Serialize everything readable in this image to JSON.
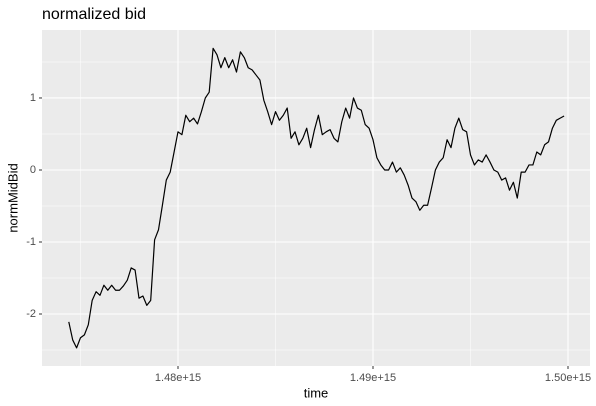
{
  "chart_data": {
    "type": "line",
    "title": "normalized bid",
    "x_label": "time",
    "y_label": "normMidBid",
    "xlim": [
      1473026000000000.0,
      1501128000000000.0
    ],
    "xticks": [
      {
        "value": 1480000000000000.0,
        "label": "1.48e+15"
      },
      {
        "value": 1490000000000000.0,
        "label": "1.49e+15"
      },
      {
        "value": 1500000000000000.0,
        "label": "1.50e+15"
      }
    ],
    "ylim": [
      -2.722,
      1.944
    ],
    "yticks": [
      -2,
      -1,
      0,
      1
    ],
    "grid": true,
    "series": [
      {
        "name": "normMidBid",
        "color": "#000000",
        "x": [
          1474400000000000.0,
          1474600000000000.0,
          1474800000000000.0,
          1475000000000000.0,
          1475200000000000.0,
          1475400000000000.0,
          1475600000000000.0,
          1475800000000000.0,
          1476000000000000.0,
          1476200000000000.0,
          1476400000000000.0,
          1476600000000000.0,
          1476800000000000.0,
          1477000000000000.0,
          1477200000000000.0,
          1477400000000000.0,
          1477600000000000.0,
          1477800000000000.0,
          1478000000000000.0,
          1478200000000000.0,
          1478400000000000.0,
          1478600000000000.0,
          1478800000000000.0,
          1479000000000000.0,
          1479200000000000.0,
          1479400000000000.0,
          1479600000000000.0,
          1479800000000000.0,
          1480000000000000.0,
          1480200000000000.0,
          1480400000000000.0,
          1480600000000000.0,
          1480800000000000.0,
          1481000000000000.0,
          1481200000000000.0,
          1481400000000000.0,
          1481600000000000.0,
          1481800000000000.0,
          1482000000000000.0,
          1482200000000000.0,
          1482400000000000.0,
          1482600000000000.0,
          1482800000000000.0,
          1483000000000000.0,
          1483200000000000.0,
          1483400000000000.0,
          1483600000000000.0,
          1483800000000000.0,
          1484000000000000.0,
          1484200000000000.0,
          1484400000000000.0,
          1484600000000000.0,
          1484800000000000.0,
          1485000000000000.0,
          1485200000000000.0,
          1485400000000000.0,
          1485600000000000.0,
          1485800000000000.0,
          1486000000000000.0,
          1486200000000000.0,
          1486400000000000.0,
          1486600000000000.0,
          1486800000000000.0,
          1487000000000000.0,
          1487200000000000.0,
          1487400000000000.0,
          1487600000000000.0,
          1487800000000000.0,
          1488000000000000.0,
          1488200000000000.0,
          1488400000000000.0,
          1488600000000000.0,
          1488800000000000.0,
          1489000000000000.0,
          1489200000000000.0,
          1489400000000000.0,
          1489600000000000.0,
          1489800000000000.0,
          1490000000000000.0,
          1490200000000000.0,
          1490400000000000.0,
          1490600000000000.0,
          1490800000000000.0,
          1491000000000000.0,
          1491200000000000.0,
          1491400000000000.0,
          1491600000000000.0,
          1491800000000000.0,
          1492000000000000.0,
          1492200000000000.0,
          1492400000000000.0,
          1492600000000000.0,
          1492800000000000.0,
          1493000000000000.0,
          1493200000000000.0,
          1493400000000000.0,
          1493600000000000.0,
          1493800000000000.0,
          1494000000000000.0,
          1494200000000000.0,
          1494400000000000.0,
          1494600000000000.0,
          1494800000000000.0,
          1495000000000000.0,
          1495200000000000.0,
          1495400000000000.0,
          1495600000000000.0,
          1495800000000000.0,
          1496000000000000.0,
          1496200000000000.0,
          1496400000000000.0,
          1496600000000000.0,
          1496800000000000.0,
          1497000000000000.0,
          1497200000000000.0,
          1497400000000000.0,
          1497600000000000.0,
          1497800000000000.0,
          1498000000000000.0,
          1498200000000000.0,
          1498400000000000.0,
          1498600000000000.0,
          1498800000000000.0,
          1499000000000000.0,
          1499200000000000.0,
          1499400000000000.0,
          1499600000000000.0,
          1499800000000000.0
        ],
        "values": [
          -2.11,
          -2.36,
          -2.47,
          -2.33,
          -2.29,
          -2.15,
          -1.81,
          -1.69,
          -1.74,
          -1.6,
          -1.67,
          -1.6,
          -1.67,
          -1.67,
          -1.61,
          -1.53,
          -1.36,
          -1.39,
          -1.78,
          -1.75,
          -1.88,
          -1.81,
          -0.97,
          -0.83,
          -0.49,
          -0.14,
          -0.03,
          0.25,
          0.53,
          0.49,
          0.76,
          0.67,
          0.72,
          0.64,
          0.81,
          1.0,
          1.08,
          1.69,
          1.6,
          1.42,
          1.56,
          1.42,
          1.53,
          1.36,
          1.64,
          1.56,
          1.42,
          1.39,
          1.32,
          1.25,
          0.97,
          0.81,
          0.63,
          0.81,
          0.69,
          0.76,
          0.86,
          0.44,
          0.53,
          0.35,
          0.44,
          0.58,
          0.31,
          0.56,
          0.76,
          0.49,
          0.53,
          0.56,
          0.44,
          0.39,
          0.67,
          0.86,
          0.72,
          1.0,
          0.86,
          0.83,
          0.63,
          0.58,
          0.42,
          0.17,
          0.07,
          0,
          0,
          0.11,
          -0.03,
          0.03,
          -0.07,
          -0.21,
          -0.39,
          -0.44,
          -0.56,
          -0.49,
          -0.49,
          -0.25,
          0,
          0.11,
          0.17,
          0.42,
          0.31,
          0.58,
          0.72,
          0.56,
          0.53,
          0.21,
          0.07,
          0.14,
          0.11,
          0.21,
          0.11,
          0,
          -0.03,
          -0.14,
          -0.11,
          -0.28,
          -0.17,
          -0.39,
          -0.03,
          -0.03,
          0.07,
          0.07,
          0.25,
          0.21,
          0.35,
          0.39,
          0.58,
          0.69,
          0.72,
          0.75
        ]
      }
    ]
  }
}
